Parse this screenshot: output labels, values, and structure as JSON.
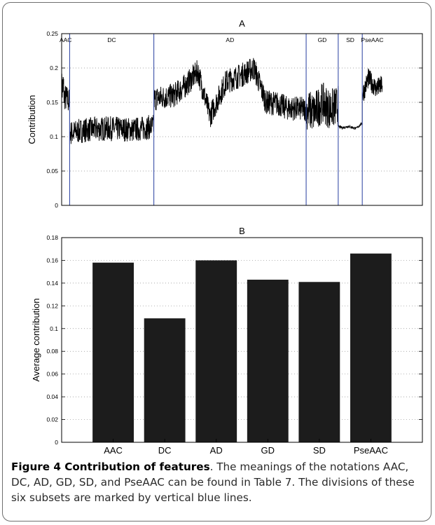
{
  "chart_data": [
    {
      "type": "line",
      "title": "A",
      "xlabel": "",
      "ylabel": "Contribution",
      "ylim": [
        0,
        0.25
      ],
      "yticks": [
        "0",
        "0.05",
        "0.1",
        "0.15",
        "0.2",
        "0.25"
      ],
      "xlim": [
        0,
        900
      ],
      "grid": true,
      "subsets": [
        {
          "name": "AAC",
          "start": 0,
          "end": 20
        },
        {
          "name": "DC",
          "start": 20,
          "end": 230
        },
        {
          "name": "AD",
          "start": 230,
          "end": 610
        },
        {
          "name": "GD",
          "start": 610,
          "end": 690
        },
        {
          "name": "SD",
          "start": 690,
          "end": 750
        },
        {
          "name": "PseAAC",
          "start": 750,
          "end": 800
        }
      ],
      "segments": [
        {
          "start": 0,
          "end": 5,
          "x": [
            0,
            5
          ],
          "y": [
            0.17,
            0.175
          ],
          "noise": 0.025
        },
        {
          "start": 5,
          "end": 20,
          "x": [
            5,
            20
          ],
          "y": [
            0.16,
            0.15
          ],
          "noise": 0.02
        },
        {
          "start": 20,
          "end": 230,
          "x": [
            20,
            60,
            120,
            180,
            230
          ],
          "y": [
            0.105,
            0.11,
            0.112,
            0.11,
            0.115
          ],
          "noise": 0.018
        },
        {
          "start": 230,
          "end": 610,
          "x": [
            230,
            280,
            310,
            340,
            370,
            410,
            450,
            480,
            510,
            540,
            560,
            610
          ],
          "y": [
            0.155,
            0.16,
            0.175,
            0.195,
            0.13,
            0.18,
            0.19,
            0.2,
            0.15,
            0.148,
            0.142,
            0.14
          ],
          "noise": 0.018
        },
        {
          "start": 610,
          "end": 690,
          "x": [
            610,
            630,
            650,
            670,
            690
          ],
          "y": [
            0.14,
            0.135,
            0.15,
            0.14,
            0.145
          ],
          "noise": 0.03
        },
        {
          "start": 690,
          "end": 750,
          "x": [
            690,
            700,
            715,
            735,
            750
          ],
          "y": [
            0.115,
            0.113,
            0.115,
            0.112,
            0.12
          ],
          "noise": 0.002
        },
        {
          "start": 750,
          "end": 800,
          "x": [
            750,
            765,
            785,
            800
          ],
          "y": [
            0.16,
            0.185,
            0.17,
            0.175
          ],
          "noise": 0.015
        }
      ]
    },
    {
      "type": "bar",
      "title": "B",
      "xlabel": "",
      "ylabel": "Average contribution",
      "categories": [
        "AAC",
        "DC",
        "AD",
        "GD",
        "SD",
        "PseAAC"
      ],
      "values": [
        0.158,
        0.109,
        0.16,
        0.143,
        0.141,
        0.166
      ],
      "ylim": [
        0,
        0.18
      ],
      "yticks": [
        "0",
        "0.02",
        "0.04",
        "0.06",
        "0.08",
        "0.1",
        "0.12",
        "0.14",
        "0.16",
        "0.18"
      ],
      "grid": true
    }
  ],
  "caption": {
    "label": "Figure 4 Contribution of features",
    "text": ". The meanings of the notations AAC, DC, AD, GD, SD, and PseAAC can be found in Table 7. The divisions of these six subsets are marked by vertical blue lines."
  },
  "colors": {
    "line": "#000000",
    "bar": "#1c1c1c",
    "divider": "#3a4fa8",
    "grid": "#8c8c8c"
  }
}
